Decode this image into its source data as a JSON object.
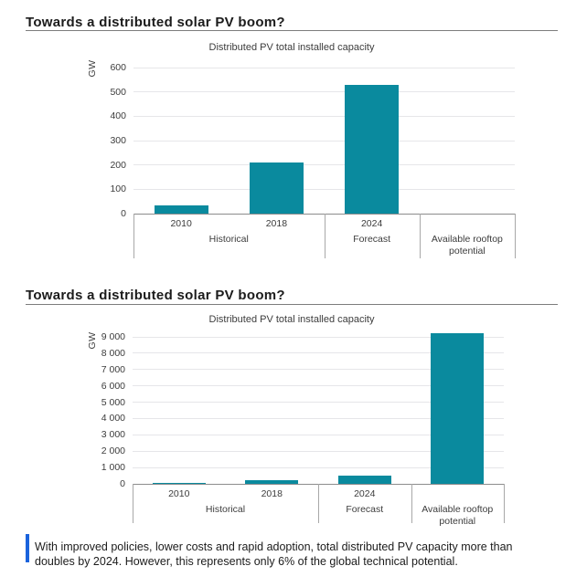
{
  "sections": [
    {
      "heading": "Towards a distributed solar PV boom?"
    },
    {
      "heading": "Towards a distributed solar PV boom?"
    }
  ],
  "caption": {
    "text": "With improved policies, lower costs and rapid adoption, total distributed PV capacity more than doubles by 2024. However, this represents only 6% of the global technical potential.",
    "accent_color": "#1a63dc"
  },
  "chart_data": [
    {
      "type": "bar",
      "title": "Distributed PV total installed capacity",
      "ylabel": "GW",
      "categories": [
        "2010",
        "2018",
        "2024",
        "Available rooftop potential"
      ],
      "col_year_labels": [
        "2010",
        "2018",
        "2024",
        ""
      ],
      "groups": [
        {
          "label": "Historical",
          "cols": 2
        },
        {
          "label": "Forecast",
          "cols": 1
        },
        {
          "label": "Available rooftop potential",
          "cols": 1
        }
      ],
      "values": [
        35,
        210,
        530,
        null
      ],
      "note": "Available rooftop potential bar exceeds axis maximum and is not drawn",
      "ylim": [
        0,
        600
      ],
      "yticks": [
        0,
        100,
        200,
        300,
        400,
        500,
        600
      ],
      "ytick_labels": [
        "0",
        "100",
        "200",
        "300",
        "400",
        "500",
        "600"
      ],
      "bar_color": "#0a8a9e",
      "grid": true,
      "legend": "none"
    },
    {
      "type": "bar",
      "title": "Distributed PV total installed capacity",
      "ylabel": "GW",
      "categories": [
        "2010",
        "2018",
        "2024",
        "Available rooftop potential"
      ],
      "col_year_labels": [
        "2010",
        "2018",
        "2024",
        ""
      ],
      "groups": [
        {
          "label": "Historical",
          "cols": 2
        },
        {
          "label": "Forecast",
          "cols": 1
        },
        {
          "label": "Available rooftop potential",
          "cols": 1
        }
      ],
      "values": [
        35,
        210,
        530,
        9200
      ],
      "ylim": [
        0,
        9500
      ],
      "yticks": [
        0,
        1000,
        2000,
        3000,
        4000,
        5000,
        6000,
        7000,
        8000,
        9000
      ],
      "ytick_labels": [
        "0",
        "1 000",
        "2 000",
        "3 000",
        "4 000",
        "5 000",
        "6 000",
        "7 000",
        "8 000",
        "9 000"
      ],
      "bar_color": "#0a8a9e",
      "grid": true,
      "legend": "none"
    }
  ]
}
